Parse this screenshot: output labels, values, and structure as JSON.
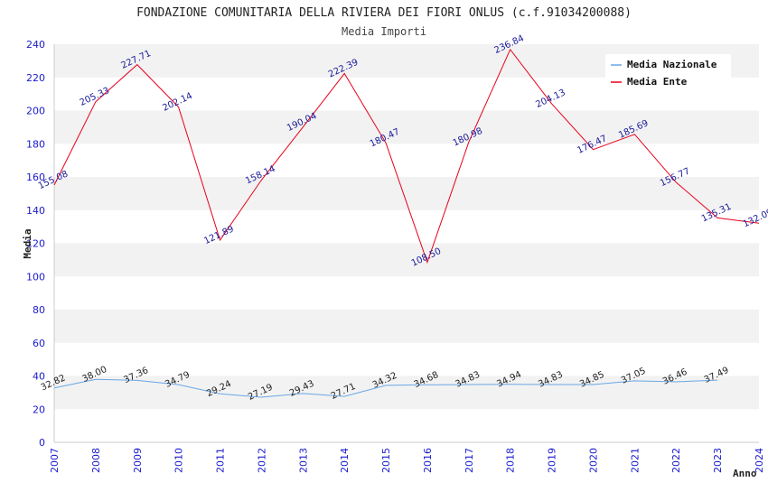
{
  "chart_data": {
    "type": "line",
    "title": "FONDAZIONE COMUNITARIA DELLA RIVIERA DEI FIORI ONLUS (c.f.91034200088)",
    "subtitle": "Media Importi",
    "xlabel": "Anno",
    "ylabel": "Media",
    "ylim": [
      0,
      240
    ],
    "yticks": [
      0,
      20,
      40,
      60,
      80,
      100,
      120,
      140,
      160,
      180,
      200,
      220,
      240
    ],
    "xlim": [
      2007,
      2024
    ],
    "xticks": [
      2007,
      2008,
      2009,
      2010,
      2011,
      2012,
      2013,
      2014,
      2015,
      2016,
      2017,
      2018,
      2019,
      2020,
      2021,
      2022,
      2023,
      2024
    ],
    "grid": "horizontal bands",
    "legend_position": "top-right",
    "series": [
      {
        "name": "Media Nazionale",
        "color": "#6aa7e6",
        "x": [
          2007,
          2008,
          2009,
          2010,
          2011,
          2012,
          2013,
          2014,
          2015,
          2016,
          2017,
          2018,
          2019,
          2020,
          2021,
          2022,
          2023
        ],
        "values": [
          32.82,
          38.0,
          37.36,
          34.79,
          29.24,
          27.19,
          29.43,
          27.71,
          34.32,
          34.68,
          34.83,
          34.94,
          34.83,
          34.85,
          37.05,
          36.46,
          37.49
        ],
        "labels": [
          "32.82",
          "38.00",
          "37.36",
          "34.79",
          "29.24",
          "27.19",
          "29.43",
          "27.71",
          "34.32",
          "34.68",
          "34.83",
          "34.94",
          "34.83",
          "34.85",
          "37.05",
          "36.46",
          "37.49"
        ]
      },
      {
        "name": "Media Ente",
        "color": "#e8001c",
        "x": [
          2007,
          2008,
          2009,
          2010,
          2011,
          2012,
          2013,
          2014,
          2015,
          2016,
          2017,
          2018,
          2019,
          2020,
          2021,
          2022,
          2023,
          2024
        ],
        "values": [
          155.08,
          205.33,
          227.71,
          202.14,
          121.89,
          158.14,
          190.04,
          222.39,
          180.47,
          108.5,
          180.98,
          236.84,
          204.13,
          176.47,
          185.69,
          156.77,
          135.31,
          132.09
        ],
        "labels": [
          "155.08",
          "205.33",
          "227.71",
          "202.14",
          "121.89",
          "158.14",
          "190.04",
          "222.39",
          "180.47",
          "108.50",
          "180.98",
          "236.84",
          "204.13",
          "176.47",
          "185.69",
          "156.77",
          "135.31",
          "132.09"
        ]
      }
    ]
  }
}
